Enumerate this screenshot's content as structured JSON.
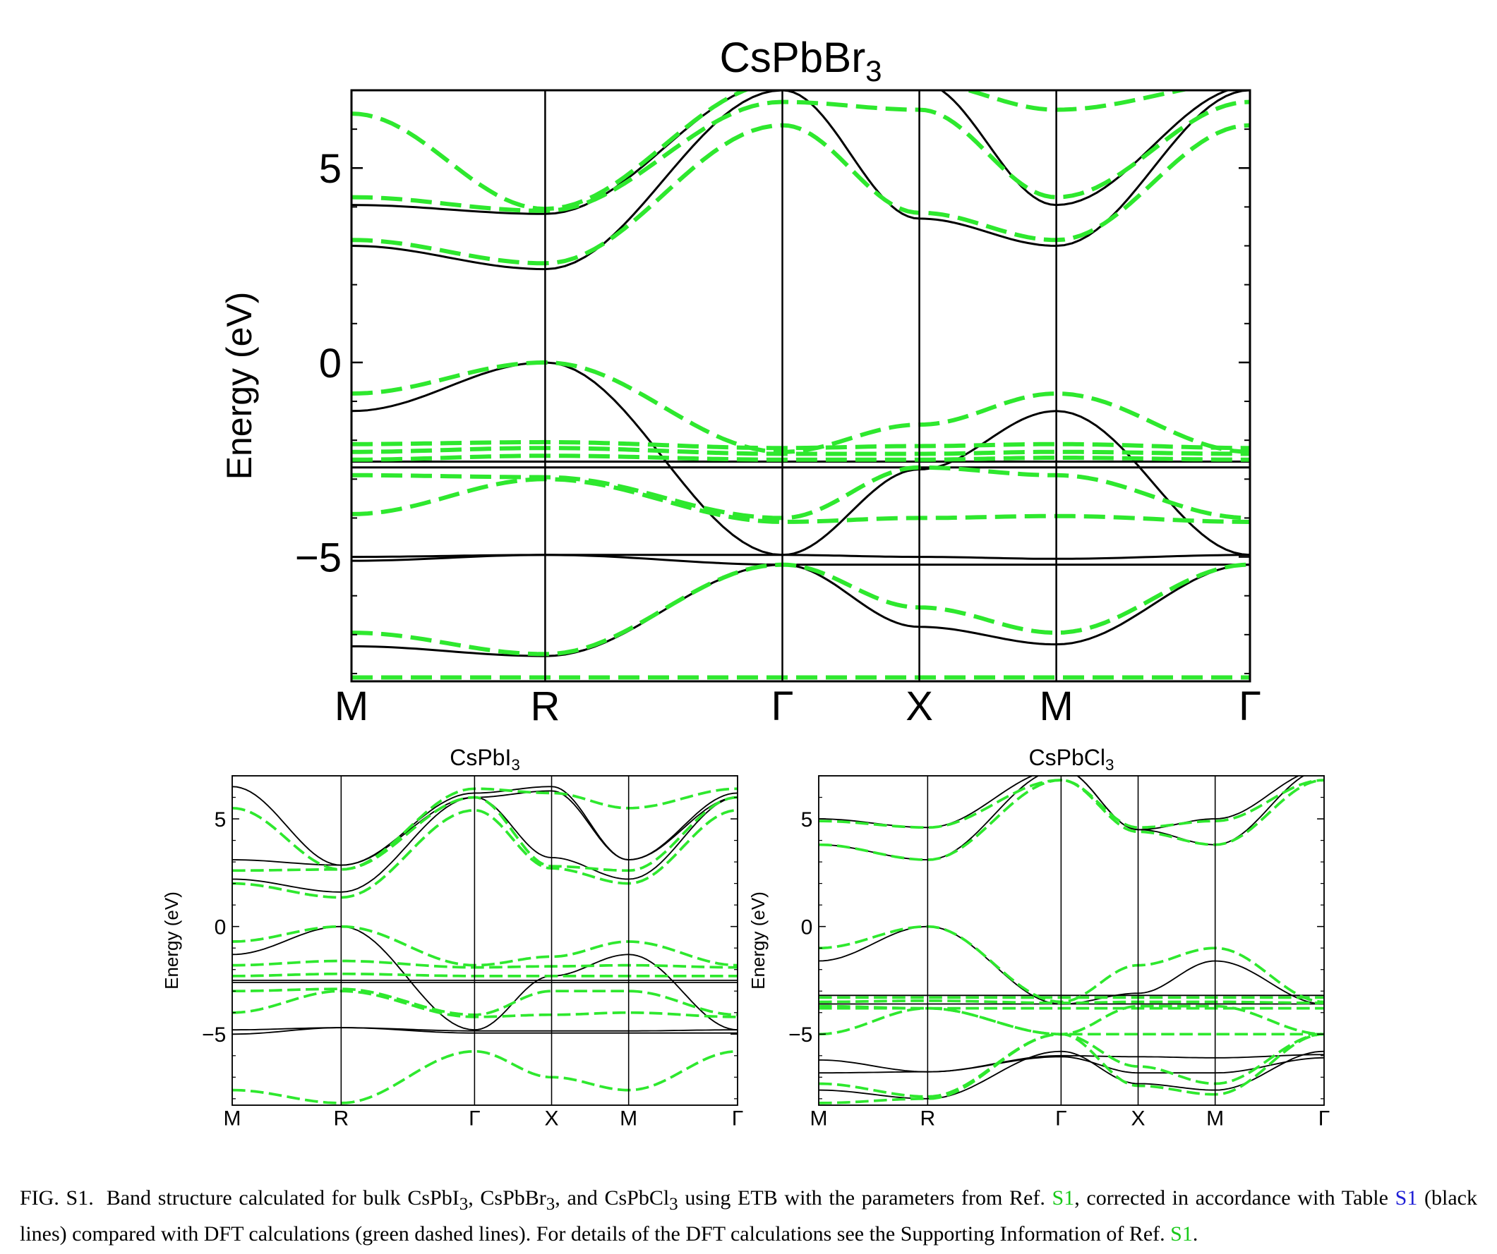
{
  "figure": {
    "colors": {
      "etb_line": "#000000",
      "dft_line": "#2ee82e"
    },
    "caption": {
      "label": "FIG. S1.",
      "t1": "Band structure calculated for bulk CsPbI",
      "sub1": "3",
      "t2": ", CsPbBr",
      "sub2": "3",
      "t3": ", and CsPbCl",
      "sub3": "3",
      "t4": " using ETB with the parameters from Ref.",
      "ref1": "S1",
      "t5": ", corrected in accordance with Table",
      "table_ref": "S1",
      "t6": " (black lines) compared with DFT calculations (green dashed lines). For details of the DFT calculations see the Supporting Information of Ref.",
      "ref2": "S1",
      "t7": "."
    }
  },
  "chart_data": [
    {
      "type": "line",
      "title": "CsPbBr3",
      "title_main": "CsPbBr",
      "title_sub": "3",
      "ylabel": "Energy (eV)",
      "ylim": [
        -8.2,
        7
      ],
      "yticks": [
        -5,
        0,
        5
      ],
      "ytick_labels": [
        "−5",
        "0",
        "5"
      ],
      "kpath": [
        0,
        0.707,
        1.573,
        2.073,
        2.573,
        3.28
      ],
      "xtick_labels": [
        "M",
        "R",
        "Γ",
        "X",
        "M",
        "Γ"
      ],
      "series": [
        {
          "style": "solid",
          "y": [
            4.05,
            3.82,
            7.2,
            7.2,
            4.05,
            7.1
          ]
        },
        {
          "style": "solid",
          "y": [
            3.0,
            2.4,
            7.0,
            3.7,
            3.0,
            7.0
          ]
        },
        {
          "style": "solid",
          "y": [
            -1.25,
            0.0,
            -4.95,
            -2.75,
            -1.25,
            -4.95
          ]
        },
        {
          "style": "solid",
          "y": [
            -2.55,
            -2.55,
            -2.55,
            -2.55,
            -2.55,
            -2.55
          ]
        },
        {
          "style": "solid",
          "y": [
            -2.7,
            -2.7,
            -2.7,
            -2.7,
            -2.7,
            -2.7
          ]
        },
        {
          "style": "solid",
          "y": [
            -5.0,
            -4.95,
            -4.95,
            -5.0,
            -5.05,
            -4.95
          ]
        },
        {
          "style": "solid",
          "y": [
            -5.1,
            -4.95,
            -5.2,
            -5.2,
            -5.2,
            -5.2
          ]
        },
        {
          "style": "solid",
          "y": [
            -7.3,
            -7.55,
            -5.2,
            -6.8,
            -7.25,
            -5.2
          ]
        },
        {
          "style": "dashed",
          "y": [
            6.4,
            3.95,
            7.2,
            7.2,
            6.5,
            7.2
          ]
        },
        {
          "style": "dashed",
          "y": [
            4.25,
            3.9,
            6.7,
            6.5,
            4.25,
            6.7
          ]
        },
        {
          "style": "dashed",
          "y": [
            3.15,
            2.55,
            6.1,
            3.85,
            3.15,
            6.1
          ]
        },
        {
          "style": "dashed",
          "y": [
            -0.8,
            0.0,
            -2.3,
            -1.6,
            -0.8,
            -2.3
          ]
        },
        {
          "style": "dashed",
          "y": [
            -2.1,
            -2.05,
            -2.2,
            -2.15,
            -2.1,
            -2.2
          ]
        },
        {
          "style": "dashed",
          "y": [
            -2.3,
            -2.2,
            -2.35,
            -2.35,
            -2.3,
            -2.35
          ]
        },
        {
          "style": "dashed",
          "y": [
            -2.5,
            -2.4,
            -2.5,
            -2.5,
            -2.45,
            -2.5
          ]
        },
        {
          "style": "dashed",
          "y": [
            -2.9,
            -2.95,
            -4.0,
            -2.7,
            -2.9,
            -4.0
          ]
        },
        {
          "style": "dashed",
          "y": [
            -3.9,
            -3.0,
            -4.1,
            -4.0,
            -3.95,
            -4.1
          ]
        },
        {
          "style": "dashed",
          "y": [
            -6.95,
            -7.5,
            -5.2,
            -6.3,
            -6.95,
            -5.2
          ]
        },
        {
          "style": "dashed",
          "y": [
            -8.1,
            -8.1,
            -8.1,
            -8.1,
            -8.1,
            -8.1
          ]
        }
      ]
    },
    {
      "type": "line",
      "title": "CsPbI3",
      "title_main": "CsPbI",
      "title_sub": "3",
      "ylabel": "Energy (eV)",
      "ylim": [
        -8.3,
        7
      ],
      "yticks": [
        -5,
        0,
        5
      ],
      "ytick_labels": [
        "−5",
        "0",
        "5"
      ],
      "kpath": [
        0,
        0.707,
        1.573,
        2.073,
        2.573,
        3.28
      ],
      "xtick_labels": [
        "M",
        "R",
        "Γ",
        "X",
        "M",
        "Γ"
      ],
      "series": [
        {
          "style": "solid",
          "y": [
            6.5,
            2.85,
            6.2,
            6.5,
            3.1,
            6.2
          ]
        },
        {
          "style": "solid",
          "y": [
            3.1,
            2.85,
            6.0,
            6.3,
            3.1,
            6.0
          ]
        },
        {
          "style": "solid",
          "y": [
            2.2,
            1.6,
            6.0,
            3.2,
            2.2,
            6.0
          ]
        },
        {
          "style": "solid",
          "y": [
            -1.3,
            0.0,
            -4.8,
            -2.3,
            -1.3,
            -4.8
          ]
        },
        {
          "style": "solid",
          "y": [
            -2.5,
            -2.5,
            -2.5,
            -2.5,
            -2.5,
            -2.5
          ]
        },
        {
          "style": "solid",
          "y": [
            -2.6,
            -2.6,
            -2.6,
            -2.6,
            -2.6,
            -2.6
          ]
        },
        {
          "style": "solid",
          "y": [
            -4.8,
            -4.7,
            -4.85,
            -4.85,
            -4.85,
            -4.8
          ]
        },
        {
          "style": "solid",
          "y": [
            -5.0,
            -4.7,
            -4.95,
            -4.95,
            -4.95,
            -4.95
          ]
        },
        {
          "style": "dashed",
          "y": [
            5.5,
            2.65,
            6.4,
            6.2,
            5.5,
            6.4
          ]
        },
        {
          "style": "dashed",
          "y": [
            2.6,
            2.65,
            6.0,
            2.8,
            2.6,
            6.0
          ]
        },
        {
          "style": "dashed",
          "y": [
            2.0,
            1.35,
            5.4,
            2.7,
            2.0,
            5.4
          ]
        },
        {
          "style": "dashed",
          "y": [
            -0.7,
            0.0,
            -1.8,
            -1.4,
            -0.7,
            -1.8
          ]
        },
        {
          "style": "dashed",
          "y": [
            -1.8,
            -1.6,
            -1.9,
            -1.85,
            -1.8,
            -1.9
          ]
        },
        {
          "style": "dashed",
          "y": [
            -2.3,
            -2.2,
            -2.3,
            -2.3,
            -2.3,
            -2.3
          ]
        },
        {
          "style": "dashed",
          "y": [
            -3.0,
            -2.9,
            -4.1,
            -3.0,
            -3.0,
            -4.1
          ]
        },
        {
          "style": "dashed",
          "y": [
            -4.0,
            -3.0,
            -4.2,
            -4.1,
            -4.0,
            -4.2
          ]
        },
        {
          "style": "dashed",
          "y": [
            -7.6,
            -8.2,
            -5.8,
            -7.0,
            -7.6,
            -5.8
          ]
        }
      ]
    },
    {
      "type": "line",
      "title": "CsPbCl3",
      "title_main": "CsPbCl",
      "title_sub": "3",
      "ylabel": "Energy (eV)",
      "ylim": [
        -8.3,
        7
      ],
      "yticks": [
        -5,
        0,
        5
      ],
      "ytick_labels": [
        "−5",
        "0",
        "5"
      ],
      "kpath": [
        0,
        0.707,
        1.573,
        2.073,
        2.573,
        3.28
      ],
      "xtick_labels": [
        "M",
        "R",
        "Γ",
        "X",
        "M",
        "Γ"
      ],
      "series": [
        {
          "style": "solid",
          "y": [
            5.0,
            4.6,
            7.3,
            4.5,
            5.0,
            7.3
          ]
        },
        {
          "style": "solid",
          "y": [
            3.8,
            3.1,
            7.3,
            4.5,
            3.8,
            7.3
          ]
        },
        {
          "style": "solid",
          "y": [
            -1.6,
            0.0,
            -3.6,
            -3.1,
            -1.6,
            -3.6
          ]
        },
        {
          "style": "solid",
          "y": [
            -3.2,
            -3.2,
            -3.2,
            -3.2,
            -3.2,
            -3.2
          ]
        },
        {
          "style": "solid",
          "y": [
            -3.6,
            -3.6,
            -3.6,
            -3.6,
            -3.6,
            -3.6
          ]
        },
        {
          "style": "solid",
          "y": [
            -6.8,
            -6.75,
            -6.0,
            -6.05,
            -6.1,
            -5.95
          ]
        },
        {
          "style": "solid",
          "y": [
            -6.2,
            -6.75,
            -6.05,
            -6.8,
            -6.8,
            -6.1
          ]
        },
        {
          "style": "solid",
          "y": [
            -7.6,
            -8.0,
            -5.8,
            -7.3,
            -7.6,
            -5.8
          ]
        },
        {
          "style": "dashed",
          "y": [
            4.9,
            4.6,
            6.8,
            4.6,
            4.9,
            6.8
          ]
        },
        {
          "style": "dashed",
          "y": [
            3.8,
            3.1,
            6.8,
            4.4,
            3.8,
            6.8
          ]
        },
        {
          "style": "dashed",
          "y": [
            -1.0,
            0.0,
            -3.5,
            -1.8,
            -1.0,
            -3.5
          ]
        },
        {
          "style": "dashed",
          "y": [
            -3.3,
            -3.3,
            -3.3,
            -3.3,
            -3.3,
            -3.3
          ]
        },
        {
          "style": "dashed",
          "y": [
            -3.5,
            -3.45,
            -3.55,
            -3.5,
            -3.5,
            -3.55
          ]
        },
        {
          "style": "dashed",
          "y": [
            -3.8,
            -3.8,
            -3.8,
            -3.8,
            -3.8,
            -3.8
          ]
        },
        {
          "style": "dashed",
          "y": [
            -5.0,
            -3.8,
            -5.0,
            -5.0,
            -5.0,
            -5.0
          ]
        },
        {
          "style": "dashed",
          "y": [
            -3.7,
            -3.8,
            -5.0,
            -3.7,
            -3.7,
            -5.0
          ]
        },
        {
          "style": "dashed",
          "y": [
            -7.3,
            -7.9,
            -5.0,
            -6.5,
            -7.3,
            -5.0
          ]
        },
        {
          "style": "dashed",
          "y": [
            -8.2,
            -8.0,
            -5.0,
            -7.4,
            -7.8,
            -5.0
          ]
        }
      ]
    }
  ]
}
